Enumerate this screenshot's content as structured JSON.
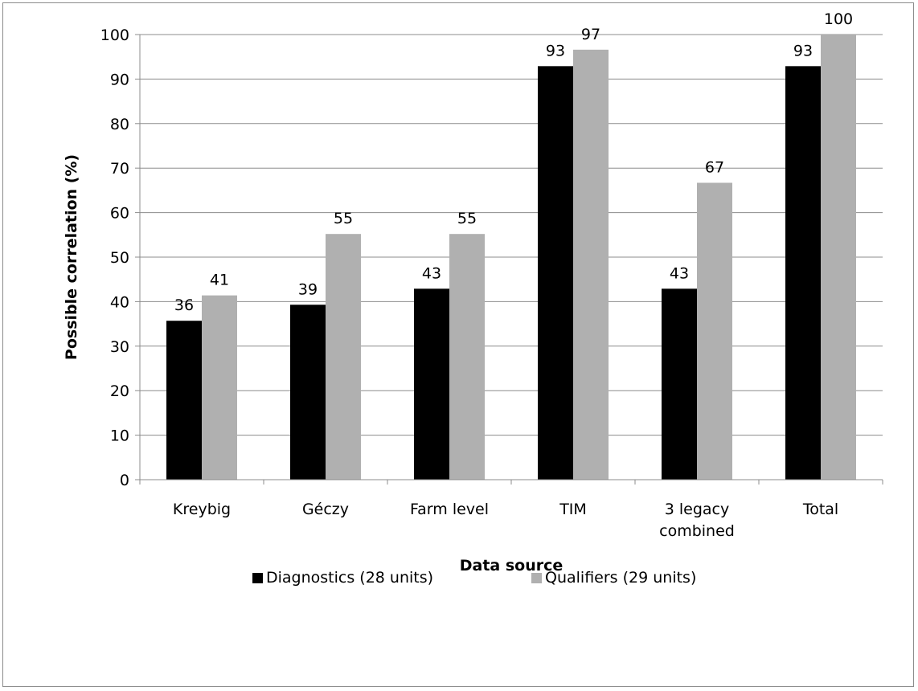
{
  "chart_data": {
    "type": "bar",
    "categories": [
      "Kreybig",
      "Géczy",
      "Farm level",
      "TIM",
      "3 legacy combined",
      "Total"
    ],
    "category_label_lines": [
      [
        "Kreybig"
      ],
      [
        "Géczy"
      ],
      [
        "Farm level"
      ],
      [
        "TIM"
      ],
      [
        "3 legacy",
        "combined"
      ],
      [
        "Total"
      ]
    ],
    "series": [
      {
        "name": "Diagnostics (28 units)",
        "color": "#000000",
        "values": [
          35.7,
          39.3,
          42.9,
          92.9,
          42.9,
          92.9
        ],
        "labels": [
          "36",
          "39",
          "43",
          "93",
          "43",
          "93"
        ]
      },
      {
        "name": "Qualifiers (29 units)",
        "color": "#b0b0b0",
        "values": [
          41.4,
          55.2,
          55.2,
          96.6,
          66.7,
          100
        ],
        "labels": [
          "41",
          "55",
          "55",
          "97",
          "67",
          "100"
        ]
      }
    ],
    "xlabel": "Data source",
    "ylabel": "Possible correlation (%)",
    "ylim": [
      0,
      100
    ],
    "yticks": [
      "0",
      "10",
      "20",
      "30",
      "40",
      "50",
      "60",
      "70",
      "80",
      "90",
      "100"
    ],
    "grid": true,
    "legend_position": "bottom"
  }
}
